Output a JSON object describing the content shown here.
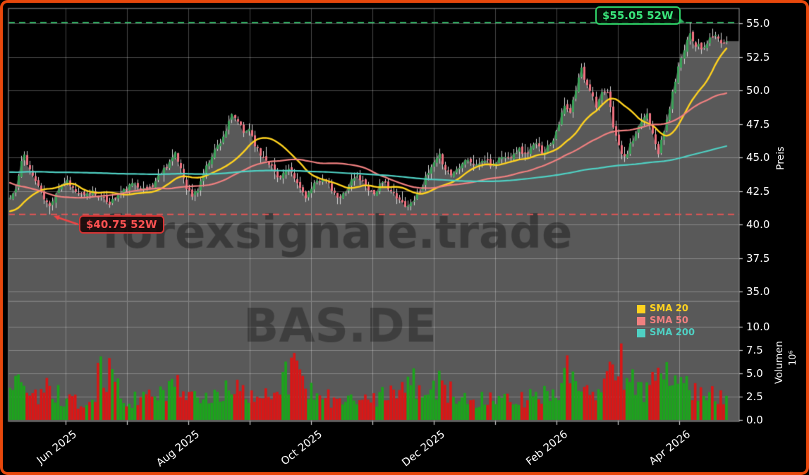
{
  "window": {
    "border_color": "#e8480c"
  },
  "watermarks": {
    "main": "forexsignale.trade",
    "symbol": "BAS.DE"
  },
  "annotations": {
    "high": {
      "label": "$55.05 52W",
      "value": 55.05,
      "color": "#3ae87c"
    },
    "low": {
      "label": "$40.75 52W",
      "value": 40.75,
      "color": "#ff5252"
    }
  },
  "axes": {
    "price": {
      "label": "Preis"
    },
    "volume": {
      "label": "Volumen",
      "exponent": "10⁶"
    }
  },
  "legend": [
    {
      "label": "SMA 20",
      "color": "#ffd21f"
    },
    {
      "label": "SMA 50",
      "color": "#f08080"
    },
    {
      "label": "SMA 200",
      "color": "#4fd0c3"
    }
  ],
  "colors": {
    "background": "#000000",
    "panel_fill": "#595959",
    "grid": "rgba(255,255,255,0.28)",
    "spine": "#7d7d7d",
    "wick": "#d6d6d6",
    "candle_up": "#3aa158",
    "candle_down": "#ee7280",
    "volume_up": "#1ca41c",
    "volume_down": "#da1616",
    "high_line": "#2fae62",
    "low_line": "#e25555",
    "text": "#ffffff",
    "watermark_main": "rgba(0,0,0,0.34)",
    "watermark_symbol": "rgba(0,0,0,0.30)"
  },
  "chart_data": {
    "type": "candlestick",
    "symbol": "BAS.DE",
    "candle_count": 253,
    "price": {
      "yticks": [
        55.0,
        52.5,
        50.0,
        47.5,
        45.0,
        42.5,
        40.0,
        37.5,
        35.0
      ],
      "ylim": [
        34.25,
        56.1
      ],
      "high_52w": {
        "value": 55.05,
        "index": 239
      },
      "low_52w": {
        "value": 40.75,
        "index": 14
      },
      "close_anchors": [
        [
          0,
          42.0
        ],
        [
          2,
          42.6
        ],
        [
          4,
          44.6
        ],
        [
          5,
          45.2
        ],
        [
          6,
          44.6
        ],
        [
          8,
          43.6
        ],
        [
          10,
          42.9
        ],
        [
          12,
          41.9
        ],
        [
          14,
          41.3
        ],
        [
          16,
          42.4
        ],
        [
          18,
          43.0
        ],
        [
          20,
          43.3
        ],
        [
          23,
          42.4
        ],
        [
          26,
          42.1
        ],
        [
          29,
          42.5
        ],
        [
          32,
          42.0
        ],
        [
          35,
          41.6
        ],
        [
          38,
          42.2
        ],
        [
          41,
          42.7
        ],
        [
          44,
          43.1
        ],
        [
          47,
          42.6
        ],
        [
          50,
          42.9
        ],
        [
          53,
          43.9
        ],
        [
          56,
          44.7
        ],
        [
          58,
          45.2
        ],
        [
          60,
          44.2
        ],
        [
          62,
          42.8
        ],
        [
          64,
          42.1
        ],
        [
          66,
          42.6
        ],
        [
          68,
          43.8
        ],
        [
          71,
          45.2
        ],
        [
          74,
          46.2
        ],
        [
          76,
          47.0
        ],
        [
          78,
          48.1
        ],
        [
          80,
          47.7
        ],
        [
          82,
          46.8
        ],
        [
          84,
          47.2
        ],
        [
          86,
          46.0
        ],
        [
          88,
          45.2
        ],
        [
          90,
          44.9
        ],
        [
          92,
          44.3
        ],
        [
          94,
          43.5
        ],
        [
          96,
          43.8
        ],
        [
          98,
          44.0
        ],
        [
          100,
          43.4
        ],
        [
          102,
          42.7
        ],
        [
          104,
          42.1
        ],
        [
          106,
          42.6
        ],
        [
          108,
          43.2
        ],
        [
          110,
          43.5
        ],
        [
          112,
          42.9
        ],
        [
          114,
          42.2
        ],
        [
          116,
          41.9
        ],
        [
          118,
          42.6
        ],
        [
          120,
          43.3
        ],
        [
          122,
          43.6
        ],
        [
          124,
          43.2
        ],
        [
          126,
          42.7
        ],
        [
          128,
          42.3
        ],
        [
          130,
          42.9
        ],
        [
          132,
          43.1
        ],
        [
          134,
          42.5
        ],
        [
          136,
          41.9
        ],
        [
          138,
          41.6
        ],
        [
          140,
          41.4
        ],
        [
          142,
          41.9
        ],
        [
          144,
          42.6
        ],
        [
          146,
          43.4
        ],
        [
          148,
          44.2
        ],
        [
          150,
          44.8
        ],
        [
          151,
          45.1
        ],
        [
          153,
          44.2
        ],
        [
          155,
          43.7
        ],
        [
          157,
          44.1
        ],
        [
          159,
          44.7
        ],
        [
          161,
          44.9
        ],
        [
          163,
          44.4
        ],
        [
          165,
          44.6
        ],
        [
          167,
          44.8
        ],
        [
          169,
          44.4
        ],
        [
          171,
          44.7
        ],
        [
          173,
          45.1
        ],
        [
          175,
          44.9
        ],
        [
          177,
          45.4
        ],
        [
          179,
          45.6
        ],
        [
          181,
          45.2
        ],
        [
          183,
          45.7
        ],
        [
          185,
          46.0
        ],
        [
          187,
          45.4
        ],
        [
          189,
          45.8
        ],
        [
          191,
          46.4
        ],
        [
          193,
          47.6
        ],
        [
          195,
          48.8
        ],
        [
          196,
          48.5
        ],
        [
          197,
          48.3
        ],
        [
          198,
          49.2
        ],
        [
          199,
          49.9
        ],
        [
          200,
          51.0
        ],
        [
          201,
          51.6
        ],
        [
          202,
          50.9
        ],
        [
          204,
          50.1
        ],
        [
          206,
          48.9
        ],
        [
          208,
          49.7
        ],
        [
          210,
          49.8
        ],
        [
          211,
          48.6
        ],
        [
          212,
          47.4
        ],
        [
          214,
          45.8
        ],
        [
          216,
          44.9
        ],
        [
          218,
          45.9
        ],
        [
          220,
          46.6
        ],
        [
          222,
          47.7
        ],
        [
          224,
          48.3
        ],
        [
          226,
          46.9
        ],
        [
          228,
          45.4
        ],
        [
          230,
          46.9
        ],
        [
          232,
          48.7
        ],
        [
          234,
          50.8
        ],
        [
          236,
          52.5
        ],
        [
          238,
          53.8
        ],
        [
          239,
          54.3
        ],
        [
          240,
          53.8
        ],
        [
          241,
          53.3
        ],
        [
          242,
          53.6
        ],
        [
          243,
          52.9
        ],
        [
          245,
          53.5
        ],
        [
          247,
          54.0
        ],
        [
          248,
          54.1
        ],
        [
          250,
          53.6
        ],
        [
          252,
          53.5
        ]
      ]
    },
    "overlays": [
      {
        "name": "SMA 20",
        "period": 20,
        "color": "#ffd21f",
        "width": 2.4
      },
      {
        "name": "SMA 50",
        "period": 50,
        "color": "#f08080",
        "width": 2.2
      },
      {
        "name": "SMA 200",
        "period": 200,
        "color": "#4fd0c3",
        "width": 2.2
      }
    ],
    "volume": {
      "yticks": [
        10.0,
        7.5,
        5.0,
        2.5,
        0.0
      ],
      "ylim": [
        0,
        12.7
      ],
      "unit_exponent": "10⁶",
      "anchors_millions": [
        [
          0,
          3.0
        ],
        [
          5,
          4.8
        ],
        [
          10,
          2.6
        ],
        [
          14,
          3.4
        ],
        [
          20,
          2.3
        ],
        [
          28,
          2.0
        ],
        [
          33,
          5.6
        ],
        [
          40,
          2.2
        ],
        [
          50,
          2.6
        ],
        [
          57,
          4.0
        ],
        [
          63,
          2.8
        ],
        [
          70,
          2.4
        ],
        [
          78,
          3.3
        ],
        [
          85,
          2.6
        ],
        [
          92,
          2.2
        ],
        [
          100,
          5.4
        ],
        [
          105,
          3.0
        ],
        [
          112,
          2.3
        ],
        [
          120,
          2.5
        ],
        [
          128,
          2.2
        ],
        [
          134,
          2.6
        ],
        [
          140,
          4.4
        ],
        [
          146,
          2.8
        ],
        [
          151,
          3.6
        ],
        [
          158,
          2.4
        ],
        [
          165,
          2.1
        ],
        [
          172,
          1.9
        ],
        [
          180,
          2.1
        ],
        [
          187,
          2.4
        ],
        [
          193,
          3.4
        ],
        [
          195,
          5.2
        ],
        [
          200,
          4.1
        ],
        [
          205,
          3.2
        ],
        [
          211,
          5.9
        ],
        [
          214,
          6.2
        ],
        [
          218,
          4.0
        ],
        [
          222,
          3.0
        ],
        [
          226,
          3.6
        ],
        [
          228,
          4.3
        ],
        [
          232,
          4.8
        ],
        [
          236,
          4.4
        ],
        [
          240,
          3.2
        ],
        [
          244,
          2.4
        ],
        [
          248,
          2.5
        ],
        [
          252,
          2.1
        ]
      ]
    },
    "x_axis": {
      "tick_indices": [
        19.6,
        41.2,
        62.8,
        84.4,
        105.9,
        127.5,
        149.1,
        170.7,
        192.2,
        213.8,
        235.4
      ],
      "tick_labels": [
        "Jun 2025",
        "",
        "Aug 2025",
        "",
        "Oct 2025",
        "",
        "Dec 2025",
        "",
        "Feb 2026",
        "",
        "Apr 2026"
      ]
    },
    "synthesis": {
      "seed": 11,
      "close_jitter": 0.19,
      "wick": 0.42,
      "prehistory_anchors": [
        [
          -200,
          43.0
        ],
        [
          -150,
          43.5
        ],
        [
          -100,
          44.2
        ],
        [
          -60,
          46.0
        ],
        [
          -45,
          47.0
        ],
        [
          -30,
          44.0
        ],
        [
          -22,
          41.2
        ],
        [
          -10,
          40.4
        ],
        [
          -1,
          41.6
        ]
      ]
    }
  }
}
